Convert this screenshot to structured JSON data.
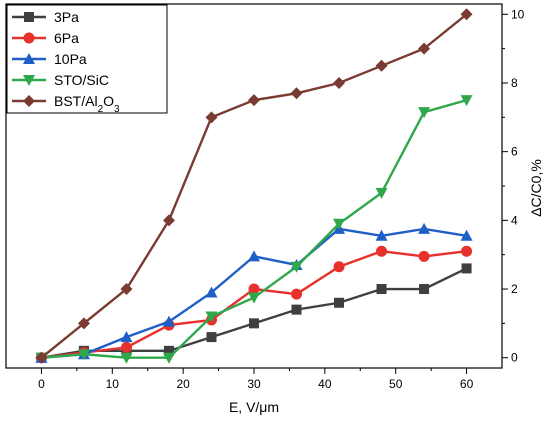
{
  "chart_data": {
    "type": "line",
    "title": "",
    "xlabel": "E, V/μm",
    "ylabel": "ΔC/C0,%",
    "xlim": [
      -5,
      65
    ],
    "ylim": [
      -0.3,
      10.3
    ],
    "x_ticks": [
      0,
      10,
      20,
      30,
      40,
      50,
      60
    ],
    "y_ticks": [
      0,
      2,
      4,
      6,
      8,
      10
    ],
    "y_axis_side": "right",
    "grid": false,
    "legend_position": "top-left",
    "x": [
      0,
      6,
      12,
      18,
      24,
      30,
      36,
      42,
      48,
      54,
      60
    ],
    "series": [
      {
        "name": "3Pa",
        "color": "#3f3f3f",
        "marker": "square",
        "values": [
          0,
          0.2,
          0.2,
          0.2,
          0.6,
          1.0,
          1.4,
          1.6,
          2.0,
          2.0,
          2.6
        ]
      },
      {
        "name": "6Pa",
        "color": "#e8302c",
        "marker": "circle",
        "values": [
          0,
          0.15,
          0.3,
          0.95,
          1.1,
          2.0,
          1.85,
          2.65,
          3.1,
          2.95,
          3.1
        ]
      },
      {
        "name": "10Pa",
        "color": "#1f5fc8",
        "marker": "triangle-up",
        "values": [
          0,
          0.1,
          0.6,
          1.05,
          1.9,
          2.95,
          2.7,
          3.75,
          3.55,
          3.75,
          3.55
        ]
      },
      {
        "name": "STO/SiC",
        "color": "#2ea84a",
        "marker": "triangle-down",
        "values": [
          0,
          0.1,
          0.0,
          0.0,
          1.2,
          1.75,
          2.65,
          3.9,
          4.8,
          7.15,
          7.5
        ]
      },
      {
        "name": "BST/Al",
        "name_sub": "2",
        "name_post": "O",
        "name_sub2": "3",
        "color": "#7a3b32",
        "marker": "diamond",
        "values": [
          0,
          1.0,
          2.0,
          4.0,
          7.0,
          7.5,
          7.7,
          8.0,
          8.5,
          9.0,
          10.0
        ]
      }
    ]
  }
}
